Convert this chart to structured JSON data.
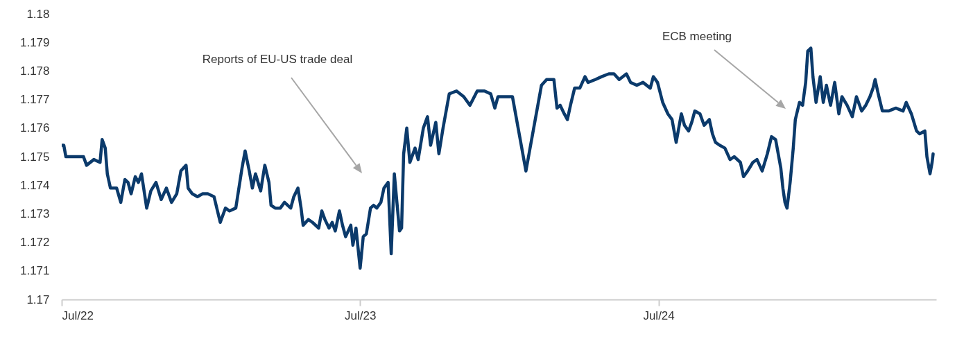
{
  "chart_data": {
    "type": "line",
    "color": "#0b3a6b",
    "x": [
      "--07-22T00:00",
      "--07-22T00:10",
      "--07-22T00:20",
      "--07-22T01:45",
      "--07-22T02:00",
      "--07-22T02:35",
      "--07-22T03:05",
      "--07-22T03:15",
      "--07-22T03:30",
      "--07-22T03:40",
      "--07-22T03:55",
      "--07-22T04:25",
      "--07-22T04:45",
      "--07-22T05:05",
      "--07-22T05:20",
      "--07-22T05:35",
      "--07-22T05:55",
      "--07-22T06:10",
      "--07-22T06:25",
      "--07-22T06:50",
      "--07-22T07:10",
      "--07-22T07:35",
      "--07-22T08:00",
      "--07-22T08:25",
      "--07-22T08:50",
      "--07-22T09:15",
      "--07-22T09:35",
      "--07-22T10:00",
      "--07-22T10:10",
      "--07-22T10:30",
      "--07-22T10:55",
      "--07-22T11:20",
      "--07-22T11:45",
      "--07-22T12:15",
      "--07-22T12:45",
      "--07-22T13:10",
      "--07-22T13:30",
      "--07-22T14:00",
      "--07-22T14:30",
      "--07-22T14:45",
      "--07-22T15:05",
      "--07-22T15:20",
      "--07-22T15:35",
      "--07-22T16:00",
      "--07-22T16:20",
      "--07-22T16:40",
      "--07-22T16:50",
      "--07-22T17:10",
      "--07-22T17:35",
      "--07-22T17:55",
      "--07-22T18:25",
      "--07-22T18:40",
      "--07-22T19:00",
      "--07-22T19:15",
      "--07-22T19:25",
      "--07-22T19:50",
      "--07-22T20:10",
      "--07-22T20:40",
      "--07-22T20:55",
      "--07-22T21:10",
      "--07-22T21:30",
      "--07-22T21:45",
      "--07-22T22:00",
      "--07-22T22:20",
      "--07-22T22:35",
      "--07-22T22:50",
      "--07-22T23:15",
      "--07-22T23:25",
      "--07-22T23:40",
      "--07-23T00:00",
      "--07-23T00:15",
      "--07-23T00:30",
      "--07-23T00:50",
      "--07-23T01:05",
      "--07-23T01:20",
      "--07-23T01:40",
      "--07-23T01:55",
      "--07-23T02:15",
      "--07-23T02:30",
      "--07-23T02:45",
      "--07-23T03:00",
      "--07-23T03:10",
      "--07-23T03:20",
      "--07-23T03:30",
      "--07-23T03:45",
      "--07-23T04:00",
      "--07-23T04:25",
      "--07-23T04:40",
      "--07-23T05:05",
      "--07-23T05:25",
      "--07-23T05:40",
      "--07-23T06:05",
      "--07-23T06:20",
      "--07-23T06:40",
      "--07-23T06:55",
      "--07-23T07:10",
      "--07-23T07:45",
      "--07-23T08:20",
      "--07-23T08:50",
      "--07-23T09:25",
      "--07-23T10:00",
      "--07-23T10:30",
      "--07-23T10:50",
      "--07-23T11:05",
      "--07-23T11:40",
      "--07-23T12:15",
      "--07-23T13:20",
      "--07-23T14:35",
      "--07-23T15:00",
      "--07-23T15:35",
      "--07-23T15:50",
      "--07-23T16:05",
      "--07-23T16:25",
      "--07-23T16:40",
      "--07-23T16:55",
      "--07-23T17:15",
      "--07-23T17:40",
      "--07-23T18:05",
      "--07-23T18:20",
      "--07-23T18:55",
      "--07-23T19:25",
      "--07-23T20:00",
      "--07-23T20:25",
      "--07-23T20:50",
      "--07-23T21:25",
      "--07-23T21:45",
      "--07-23T22:15",
      "--07-23T22:45",
      "--07-23T23:20",
      "--07-23T23:35",
      "--07-23T23:55",
      "--07-24T00:20",
      "--07-24T00:45",
      "--07-24T01:05",
      "--07-24T01:25",
      "--07-24T01:50",
      "--07-24T02:05",
      "--07-24T02:25",
      "--07-24T02:40",
      "--07-24T02:55",
      "--07-24T03:20",
      "--07-24T03:40",
      "--07-24T04:05",
      "--07-24T04:20",
      "--07-24T04:35",
      "--07-24T04:55",
      "--07-24T05:20",
      "--07-24T05:45",
      "--07-24T06:05",
      "--07-24T06:35",
      "--07-24T06:50",
      "--07-24T07:10",
      "--07-24T07:35",
      "--07-24T07:55",
      "--07-24T08:20",
      "--07-24T08:45",
      "--07-24T09:05",
      "--07-24T09:25",
      "--07-24T09:50",
      "--07-24T10:00",
      "--07-24T10:10",
      "--07-24T10:20",
      "--07-24T10:35",
      "--07-24T10:50",
      "--07-24T11:00",
      "--07-24T11:20",
      "--07-24T11:35",
      "--07-24T11:50",
      "--07-24T12:00",
      "--07-24T12:15",
      "--07-24T12:25",
      "--07-24T12:40",
      "--07-24T13:00",
      "--07-24T13:15",
      "--07-24T13:30",
      "--07-24T13:50",
      "--07-24T14:10",
      "--07-24T14:30",
      "--07-24T14:45",
      "--07-24T15:10",
      "--07-24T15:35",
      "--07-24T15:55",
      "--07-24T16:20",
      "--07-24T16:40",
      "--07-24T17:00",
      "--07-24T17:15",
      "--07-24T17:25",
      "--07-24T17:40",
      "--07-24T18:00",
      "--07-24T18:30",
      "--07-24T19:05",
      "--07-24T19:40",
      "--07-24T19:55",
      "--07-24T20:20",
      "--07-24T20:45",
      "--07-24T21:00",
      "--07-24T21:25",
      "--07-24T21:35",
      "--07-24T21:50",
      "--07-24T22:00",
      "--07-24T22:05"
    ],
    "values": [
      1.1754,
      1.1754,
      1.175,
      1.175,
      1.1747,
      1.1749,
      1.1748,
      1.1756,
      1.1753,
      1.1744,
      1.1739,
      1.1739,
      1.1734,
      1.1742,
      1.1741,
      1.1737,
      1.1743,
      1.1741,
      1.1744,
      1.1732,
      1.1738,
      1.1741,
      1.1735,
      1.1739,
      1.1734,
      1.1737,
      1.1745,
      1.1747,
      1.1739,
      1.1737,
      1.1736,
      1.1737,
      1.1737,
      1.1736,
      1.1727,
      1.1732,
      1.1731,
      1.1732,
      1.1746,
      1.1752,
      1.1745,
      1.1739,
      1.1744,
      1.1738,
      1.1747,
      1.1741,
      1.1733,
      1.1732,
      1.1732,
      1.1734,
      1.1732,
      1.1736,
      1.1739,
      1.1732,
      1.1726,
      1.1728,
      1.1727,
      1.1725,
      1.1731,
      1.1728,
      1.1725,
      1.1727,
      1.1724,
      1.1731,
      1.1726,
      1.1722,
      1.1726,
      1.1719,
      1.1725,
      1.1711,
      1.1722,
      1.1723,
      1.1732,
      1.1733,
      1.1732,
      1.1734,
      1.1739,
      1.1741,
      1.1716,
      1.1744,
      1.1732,
      1.1724,
      1.1725,
      1.1751,
      1.176,
      1.1748,
      1.1753,
      1.1749,
      1.176,
      1.1764,
      1.1754,
      1.1762,
      1.1751,
      1.176,
      1.1766,
      1.1772,
      1.1773,
      1.1771,
      1.1768,
      1.1773,
      1.1773,
      1.1772,
      1.1767,
      1.1771,
      1.1771,
      1.1771,
      1.1745,
      1.1775,
      1.1777,
      1.1777,
      1.1767,
      1.1768,
      1.1765,
      1.1763,
      1.1768,
      1.1774,
      1.1774,
      1.1778,
      1.1776,
      1.1777,
      1.1778,
      1.1779,
      1.1779,
      1.1777,
      1.1779,
      1.1776,
      1.1775,
      1.1776,
      1.1774,
      1.1778,
      1.1776,
      1.1769,
      1.1765,
      1.1763,
      1.1755,
      1.1765,
      1.1761,
      1.1759,
      1.1762,
      1.1766,
      1.1765,
      1.1761,
      1.1763,
      1.1758,
      1.1755,
      1.1754,
      1.1753,
      1.1749,
      1.175,
      1.1748,
      1.1743,
      1.1745,
      1.1748,
      1.1749,
      1.1745,
      1.1751,
      1.1757,
      1.1756,
      1.1746,
      1.1739,
      1.1734,
      1.1732,
      1.1741,
      1.1753,
      1.1763,
      1.1769,
      1.1768,
      1.1776,
      1.1787,
      1.1788,
      1.1778,
      1.1769,
      1.1778,
      1.1769,
      1.1775,
      1.1768,
      1.1776,
      1.1765,
      1.1771,
      1.1768,
      1.1764,
      1.1771,
      1.1766,
      1.1768,
      1.1771,
      1.1774,
      1.1777,
      1.1772,
      1.1766,
      1.1766,
      1.1767,
      1.1766,
      1.1769,
      1.1765,
      1.1759,
      1.1758,
      1.1759,
      1.175,
      1.1744,
      1.1748,
      1.1751
    ],
    "xlim": [
      "--07-22T00:00",
      "--07-24T22:20"
    ],
    "xticks": [
      {
        "value": "--07-22",
        "label": "Jul/22"
      },
      {
        "value": "--07-23",
        "label": "Jul/23"
      },
      {
        "value": "--07-24",
        "label": "Jul/24"
      }
    ],
    "ylim": [
      1.17,
      1.18
    ],
    "yticks": [
      1.17,
      1.171,
      1.172,
      1.173,
      1.174,
      1.175,
      1.176,
      1.177,
      1.178,
      1.179,
      1.18
    ],
    "annotations": [
      "Reports of EU-US trade deal",
      "ECB meeting"
    ]
  }
}
